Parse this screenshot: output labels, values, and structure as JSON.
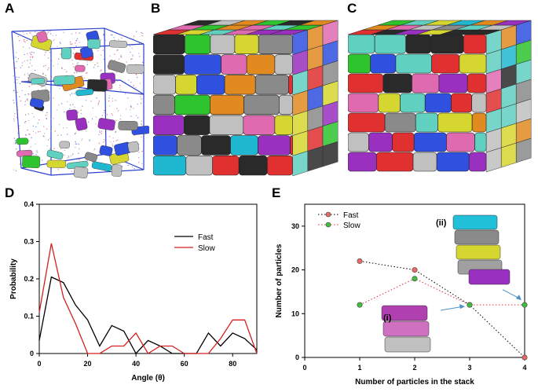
{
  "panels": {
    "a": {
      "letter": "A"
    },
    "b": {
      "letter": "B"
    },
    "c": {
      "letter": "C"
    },
    "d": {
      "letter": "D"
    },
    "e": {
      "letter": "E"
    }
  },
  "colors": {
    "fast_d": "#000000",
    "slow_d": "#d42020",
    "fast_marker": "#e66a6a",
    "slow_marker": "#3fbf3f",
    "fast_line_e": "#000000",
    "slow_line_e": "#e03030",
    "arrow": "#4a90c8"
  },
  "chart_data": [
    {
      "type": "line",
      "panel": "D",
      "xlabel": "Angle (θ)",
      "ylabel": "Probability",
      "xlim": [
        0,
        90
      ],
      "ylim": [
        0,
        0.4
      ],
      "xticks": [
        0,
        20,
        40,
        60,
        80
      ],
      "yticks": [
        0,
        0.1,
        0.2,
        0.3,
        0.4
      ],
      "ytick_labels": [
        "0",
        "0.1",
        "0.2",
        "0.3",
        "0.4"
      ],
      "legend_position": "right",
      "grid": false,
      "series": [
        {
          "name": "Fast",
          "x": [
            0,
            5,
            10,
            15,
            20,
            25,
            30,
            35,
            40,
            45,
            50,
            55,
            60,
            65,
            70,
            75,
            80,
            85,
            90
          ],
          "y": [
            0.035,
            0.205,
            0.19,
            0.13,
            0.09,
            0.02,
            0.075,
            0.06,
            0.0,
            0.035,
            0.02,
            0.0,
            0.0,
            0.0,
            0.055,
            0.02,
            0.055,
            0.04,
            0.01
          ]
        },
        {
          "name": "Slow",
          "x": [
            0,
            5,
            10,
            15,
            20,
            25,
            30,
            35,
            40,
            45,
            50,
            55,
            60,
            65,
            70,
            75,
            80,
            85,
            90
          ],
          "y": [
            0.11,
            0.295,
            0.15,
            0.08,
            0.0,
            0.0,
            0.02,
            0.02,
            0.055,
            0.0,
            0.02,
            0.02,
            0.0,
            0.0,
            0.0,
            0.04,
            0.09,
            0.09,
            0.0
          ]
        }
      ]
    },
    {
      "type": "scatter",
      "panel": "E",
      "xlabel": "Number of particles in the stack",
      "ylabel": "Number of particles",
      "xlim": [
        0,
        4
      ],
      "ylim": [
        0,
        35
      ],
      "xticks": [
        0,
        1,
        2,
        3,
        4
      ],
      "yticks": [
        0,
        10,
        20,
        30
      ],
      "legend_position": "top-left",
      "grid": false,
      "annotations": [
        "(i)",
        "(ii)"
      ],
      "series": [
        {
          "name": "Fast",
          "x": [
            1,
            2,
            3,
            4
          ],
          "y": [
            22,
            20,
            12,
            0
          ]
        },
        {
          "name": "Slow",
          "x": [
            1,
            2,
            3,
            4
          ],
          "y": [
            12,
            18,
            12,
            12
          ]
        }
      ]
    }
  ]
}
